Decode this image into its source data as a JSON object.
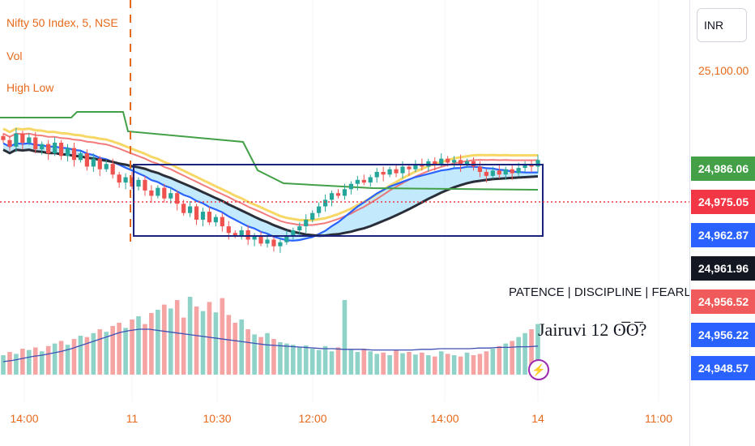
{
  "legend": {
    "symbol_line": "Nifty 50 Index, 5, NSE",
    "vol_line": "Vol",
    "highlow_line": "High Low"
  },
  "axis": {
    "currency": "INR",
    "top_price": "25,100.00",
    "price_labels": [
      {
        "text": "24,986.06",
        "color": "#43a047"
      },
      {
        "text": "24,975.05",
        "color": "#f23645"
      },
      {
        "text": "24,962.87",
        "color": "#2962ff"
      },
      {
        "text": "24,961.96",
        "color": "#131722"
      },
      {
        "text": "24,956.52",
        "color": "#f05a5a"
      },
      {
        "text": "24,956.22",
        "color": "#2962ff"
      },
      {
        "text": "24,948.57",
        "color": "#2962ff"
      }
    ],
    "time_labels": [
      "14:00",
      "11",
      "10:30",
      "12:00",
      "14:00",
      "14",
      "11:00"
    ]
  },
  "annotations": {
    "motto": "PATENCE | DISCIPLINE | FEARLESS",
    "signature": "Jairuvi 12 ʘ̅ʘ̅?"
  },
  "colors": {
    "up": "#26a69a",
    "down": "#ef5350",
    "accent": "#e66a1b",
    "box": "#1a237e",
    "green_line": "#43a047"
  },
  "chart_data": {
    "type": "candlestick",
    "symbol": "Nifty 50 Index",
    "interval": "5",
    "exchange": "NSE",
    "current_price": 24975.05,
    "price_scale_top": 25100.0,
    "levels": [
      24986.06,
      24975.05,
      24962.87,
      24961.96,
      24956.52,
      24956.22,
      24948.57
    ],
    "closes": [
      24990,
      24985,
      24995,
      24988,
      24992,
      24983,
      24987,
      24980,
      24988,
      24978,
      24984,
      24975,
      24980,
      24970,
      24976,
      24968,
      24972,
      24964,
      24958,
      24962,
      24955,
      24960,
      24952,
      24948,
      24954,
      24946,
      24950,
      24942,
      24935,
      24940,
      24930,
      24936,
      24928,
      24932,
      24925,
      24920,
      24918,
      24922,
      24915,
      24918,
      24912,
      24915,
      24910,
      24913,
      24918,
      24922,
      24925,
      24930,
      24935,
      24940,
      24945,
      24950,
      24948,
      24953,
      24957,
      24960,
      24958,
      24962,
      24966,
      24964,
      24968,
      24965,
      24970,
      24968,
      24972,
      24970,
      24974,
      24972,
      24976,
      24973,
      24975,
      24971,
      24974,
      24970,
      24966,
      24963,
      24967,
      24964,
      24968,
      24965,
      24969,
      24972,
      24970,
      24975
    ],
    "volume": [
      30,
      35,
      32,
      40,
      38,
      42,
      36,
      44,
      48,
      52,
      46,
      55,
      60,
      58,
      64,
      70,
      66,
      75,
      80,
      72,
      85,
      90,
      78,
      95,
      100,
      108,
      102,
      115,
      88,
      120,
      105,
      98,
      112,
      96,
      118,
      92,
      80,
      85,
      70,
      62,
      58,
      64,
      55,
      50,
      48,
      46,
      42,
      45,
      40,
      38,
      44,
      36,
      42,
      115,
      38,
      35,
      40,
      36,
      32,
      34,
      30,
      38,
      33,
      35,
      31,
      34,
      30,
      28,
      36,
      32,
      30,
      28,
      34,
      30,
      32,
      36,
      40,
      44,
      48,
      52,
      58,
      64,
      70,
      78
    ],
    "volume_ma": [
      20,
      22,
      25,
      28,
      30,
      33,
      36,
      40,
      45,
      50,
      55,
      60,
      65,
      68,
      70,
      70,
      68,
      66,
      64,
      62,
      60,
      58,
      56,
      54,
      52,
      50,
      48,
      46,
      45,
      44,
      43,
      42,
      41,
      40,
      40,
      39,
      39,
      39,
      38,
      38,
      38,
      38,
      38,
      39,
      39,
      40,
      40,
      40,
      40,
      41,
      41,
      42,
      42,
      43,
      43,
      44
    ]
  }
}
